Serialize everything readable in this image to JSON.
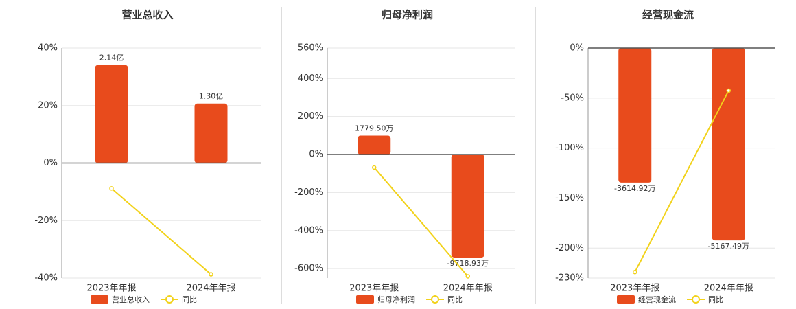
{
  "chart_data": [
    {
      "type": "bar",
      "title": "营业总收入",
      "categories": [
        "2023年年报",
        "2024年年报"
      ],
      "ylim": [
        -40,
        40
      ],
      "yticks": [
        {
          "value": 40,
          "label": "40%"
        },
        {
          "value": 20,
          "label": "20%"
        },
        {
          "value": 0,
          "label": "0%"
        },
        {
          "value": -20,
          "label": "-20%"
        },
        {
          "value": -40,
          "label": "-40%"
        }
      ],
      "y2lim": [
        -2.51,
        2.51
      ],
      "grid": true,
      "series": [
        {
          "name": "营业总收入",
          "type": "bar",
          "axis": "y2",
          "color": "#e84b1c",
          "values": [
            2.14,
            1.3
          ],
          "value_labels": [
            "2.14亿",
            "1.30亿"
          ]
        },
        {
          "name": "同比",
          "type": "line",
          "color": "#f2d21b",
          "values": [
            -8.8,
            -38.7
          ]
        }
      ]
    },
    {
      "type": "bar",
      "title": "归母净利润",
      "categories": [
        "2023年年报",
        "2024年年报"
      ],
      "ylim": [
        -650,
        560
      ],
      "yticks": [
        {
          "value": 560,
          "label": "560%"
        },
        {
          "value": 400,
          "label": "400%"
        },
        {
          "value": 200,
          "label": "200%"
        },
        {
          "value": 0,
          "label": "0%"
        },
        {
          "value": -200,
          "label": "-200%"
        },
        {
          "value": -400,
          "label": "-400%"
        },
        {
          "value": -600,
          "label": "-600%"
        }
      ],
      "y2lim": [
        -11665,
        10045
      ],
      "grid": true,
      "series": [
        {
          "name": "归母净利润",
          "type": "bar",
          "axis": "y2",
          "color": "#e84b1c",
          "values": [
            1779.5,
            -9718.93
          ],
          "value_labels": [
            "1779.50万",
            "-9718.93万"
          ]
        },
        {
          "name": "同比",
          "type": "line",
          "color": "#f2d21b",
          "values": [
            -68,
            -641
          ]
        }
      ]
    },
    {
      "type": "bar",
      "title": "经营现金流",
      "categories": [
        "2023年年报",
        "2024年年报"
      ],
      "ylim": [
        -230,
        0
      ],
      "yticks": [
        {
          "value": 0,
          "label": "0%"
        },
        {
          "value": -50,
          "label": "-50%"
        },
        {
          "value": -100,
          "label": "-100%"
        },
        {
          "value": -150,
          "label": "-150%"
        },
        {
          "value": -200,
          "label": "-200%"
        },
        {
          "value": -230,
          "label": "-230%"
        }
      ],
      "y2lim": [
        -6181,
        0
      ],
      "grid": true,
      "series": [
        {
          "name": "经营现金流",
          "type": "bar",
          "axis": "y2",
          "color": "#e84b1c",
          "values": [
            -3614.92,
            -5167.49
          ],
          "value_labels": [
            "-3614.92万",
            "-5167.49万"
          ]
        },
        {
          "name": "同比",
          "type": "line",
          "color": "#f2d21b",
          "values": [
            -224,
            -42.6
          ]
        }
      ]
    }
  ]
}
